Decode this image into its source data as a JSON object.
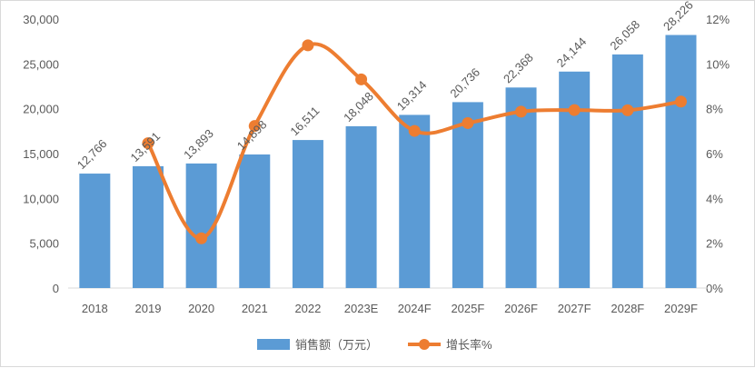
{
  "chart_data": {
    "type": "bar+line",
    "categories": [
      "2018",
      "2019",
      "2020",
      "2021",
      "2022",
      "2023E",
      "2024F",
      "2025F",
      "2026F",
      "2027F",
      "2028F",
      "2029F"
    ],
    "series": [
      {
        "name": "销售额（万元）",
        "type": "bar",
        "axis": "left",
        "color": "#5b9bd5",
        "values": [
          12766,
          13591,
          13893,
          14898,
          16511,
          18048,
          19314,
          20736,
          22368,
          24144,
          26058,
          28226
        ],
        "labels": [
          "12,766",
          "13,591",
          "13,893",
          "14,898",
          "16,511",
          "18,048",
          "19,314",
          "20,736",
          "22,368",
          "24,144",
          "26,058",
          "28,226"
        ]
      },
      {
        "name": "增长率%",
        "type": "line",
        "axis": "right",
        "color": "#ed7d31",
        "values": [
          null,
          6.46,
          2.22,
          7.23,
          10.83,
          9.31,
          7.01,
          7.36,
          7.87,
          7.94,
          7.93,
          8.32
        ]
      }
    ],
    "y_left": {
      "range": [
        0,
        30000
      ],
      "ticks": [
        "0",
        "5,000",
        "10,000",
        "15,000",
        "20,000",
        "25,000",
        "30,000"
      ]
    },
    "y_right": {
      "range": [
        0,
        12
      ],
      "ticks": [
        "0%",
        "2%",
        "4%",
        "6%",
        "8%",
        "10%",
        "12%"
      ]
    },
    "grid": false,
    "legend": "bottom-center"
  }
}
